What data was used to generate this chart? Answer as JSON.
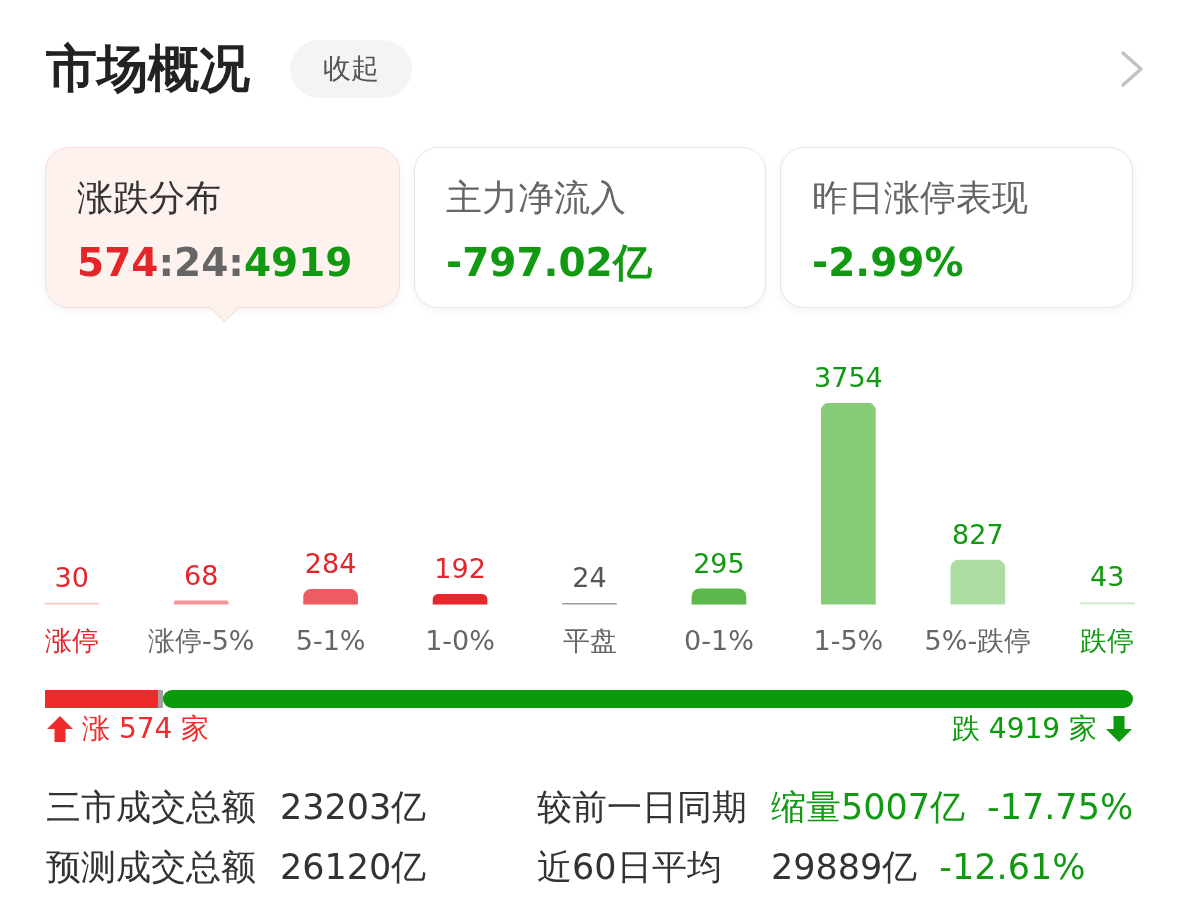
{
  "chart_data": [
    {
      "type": "other",
      "title": "市场概况",
      "annotations": [
        "收起",
        "涨跌分布",
        "574:24:4919",
        "主力净流入",
        "-797.02亿",
        "昨日涨停表现",
        "-2.99%"
      ]
    },
    {
      "type": "bar",
      "categories": [
        "涨停",
        "涨停-5%",
        "5-1%",
        "1-0%",
        "平盘",
        "0-1%",
        "1-5%",
        "5%-跌停",
        "跌停"
      ],
      "values": [
        30,
        68,
        284,
        192,
        24,
        295,
        3754,
        827,
        43
      ],
      "colors": [
        "#f9c6c7",
        "#f39599",
        "#ee5b60",
        "#e8262b",
        "#9b9b9b",
        "#5cb84a",
        "#86cc77",
        "#acdca2",
        "#d5edd0"
      ],
      "data_labels": true
    },
    {
      "type": "bar",
      "orientation": "horizontal",
      "stacked": true,
      "categories": [
        null
      ],
      "series": [
        {
          "color": "#ee2a2a",
          "values": [
            574
          ],
          "value_labels": [
            "涨 574 家"
          ]
        },
        {
          "color": "#a0a0a0",
          "values": [
            24
          ],
          "value_labels": [
            null
          ]
        },
        {
          "color": "#0b9a0b",
          "values": [
            4919
          ],
          "value_labels": [
            "跌 4919 家"
          ]
        }
      ]
    },
    {
      "type": "other",
      "annotations": [
        "三市成交总额",
        "23203亿",
        "较前一日同期",
        "缩量5007亿",
        "-17.75%",
        "预测成交总额",
        "26120亿",
        "近60日平均",
        "29889亿",
        "-12.61%"
      ]
    }
  ]
}
